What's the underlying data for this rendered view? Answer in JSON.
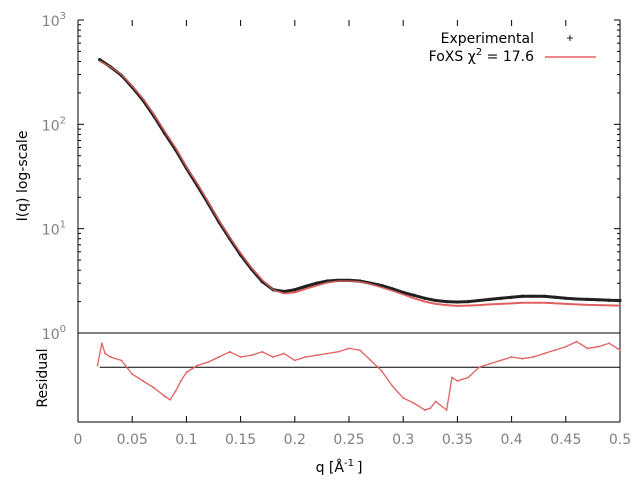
{
  "chart_data": [
    {
      "type": "scatter",
      "ylabel": "I(q) log-scale",
      "yscale": "log",
      "xlim": [
        0,
        0.5
      ],
      "ylim": [
        1,
        1000
      ],
      "x_ticks": [
        0,
        0.05,
        0.1,
        0.15,
        0.2,
        0.25,
        0.3,
        0.35,
        0.4,
        0.45,
        0.5
      ],
      "y_ticks": [
        {
          "base": "10",
          "exp": "0",
          "value": 1
        },
        {
          "base": "10",
          "exp": "1",
          "value": 10
        },
        {
          "base": "10",
          "exp": "2",
          "value": 100
        },
        {
          "base": "10",
          "exp": "3",
          "value": 1000
        }
      ],
      "legend_position": "top-right",
      "legend": {
        "experimental": "Experimental",
        "fit_prefix": "FoXS χ",
        "fit_exp": "2",
        "fit_suffix": " = 17.6"
      },
      "x": [
        0.02,
        0.03,
        0.04,
        0.05,
        0.06,
        0.07,
        0.08,
        0.09,
        0.1,
        0.11,
        0.12,
        0.13,
        0.14,
        0.15,
        0.16,
        0.17,
        0.18,
        0.19,
        0.2,
        0.21,
        0.22,
        0.23,
        0.24,
        0.25,
        0.26,
        0.27,
        0.28,
        0.29,
        0.3,
        0.31,
        0.32,
        0.33,
        0.34,
        0.35,
        0.36,
        0.37,
        0.38,
        0.39,
        0.4,
        0.41,
        0.42,
        0.43,
        0.44,
        0.45,
        0.46,
        0.47,
        0.48,
        0.49,
        0.5
      ],
      "series": [
        {
          "name": "Experimental",
          "color": "#202020",
          "values": [
            417,
            355,
            295,
            227,
            170,
            120,
            82,
            57,
            38,
            26,
            17.5,
            11.6,
            8.0,
            5.6,
            4.1,
            3.1,
            2.6,
            2.5,
            2.6,
            2.8,
            3.0,
            3.15,
            3.2,
            3.2,
            3.15,
            3.0,
            2.85,
            2.65,
            2.45,
            2.3,
            2.15,
            2.05,
            2.0,
            1.98,
            2.0,
            2.05,
            2.1,
            2.15,
            2.2,
            2.25,
            2.25,
            2.25,
            2.2,
            2.15,
            2.12,
            2.1,
            2.08,
            2.06,
            2.05
          ]
        },
        {
          "name": "FoXS χ2 = 17.6",
          "color": "#e06060",
          "values": [
            405,
            355,
            300,
            232,
            175,
            124,
            85,
            59,
            39,
            27,
            18,
            12,
            8.2,
            5.8,
            4.2,
            3.2,
            2.6,
            2.4,
            2.45,
            2.65,
            2.85,
            3.05,
            3.15,
            3.15,
            3.1,
            2.95,
            2.75,
            2.55,
            2.35,
            2.15,
            2.0,
            1.9,
            1.85,
            1.82,
            1.83,
            1.85,
            1.88,
            1.9,
            1.92,
            1.95,
            1.95,
            1.95,
            1.93,
            1.9,
            1.88,
            1.86,
            1.85,
            1.84,
            1.83
          ]
        }
      ]
    },
    {
      "type": "line",
      "xlabel_base": "q [Å",
      "xlabel_exp": "-1",
      "xlabel_end": "]",
      "ylabel": "Residual",
      "xlim": [
        0,
        0.5
      ],
      "ylim": [
        -1.6,
        1.0
      ],
      "zero_line": 0,
      "x": [
        0.018,
        0.022,
        0.025,
        0.03,
        0.04,
        0.05,
        0.06,
        0.07,
        0.08,
        0.085,
        0.09,
        0.095,
        0.1,
        0.11,
        0.12,
        0.13,
        0.14,
        0.15,
        0.16,
        0.17,
        0.18,
        0.19,
        0.2,
        0.21,
        0.22,
        0.23,
        0.24,
        0.25,
        0.26,
        0.27,
        0.28,
        0.29,
        0.3,
        0.31,
        0.32,
        0.325,
        0.33,
        0.34,
        0.345,
        0.35,
        0.36,
        0.37,
        0.38,
        0.39,
        0.4,
        0.41,
        0.42,
        0.43,
        0.44,
        0.45,
        0.46,
        0.47,
        0.48,
        0.49,
        0.5
      ],
      "series": [
        {
          "name": "",
          "color": "#e06060",
          "values": [
            0.05,
            0.7,
            0.4,
            0.3,
            0.2,
            -0.2,
            -0.4,
            -0.6,
            -0.85,
            -0.95,
            -0.7,
            -0.4,
            -0.15,
            0.05,
            0.15,
            0.3,
            0.45,
            0.3,
            0.35,
            0.45,
            0.3,
            0.4,
            0.2,
            0.3,
            0.35,
            0.4,
            0.45,
            0.55,
            0.5,
            0.2,
            -0.1,
            -0.55,
            -0.9,
            -1.05,
            -1.25,
            -1.2,
            -1.0,
            -1.25,
            -0.3,
            -0.4,
            -0.3,
            0.0,
            0.1,
            0.2,
            0.3,
            0.25,
            0.3,
            0.4,
            0.5,
            0.6,
            0.75,
            0.55,
            0.6,
            0.7,
            0.5
          ]
        }
      ]
    }
  ]
}
